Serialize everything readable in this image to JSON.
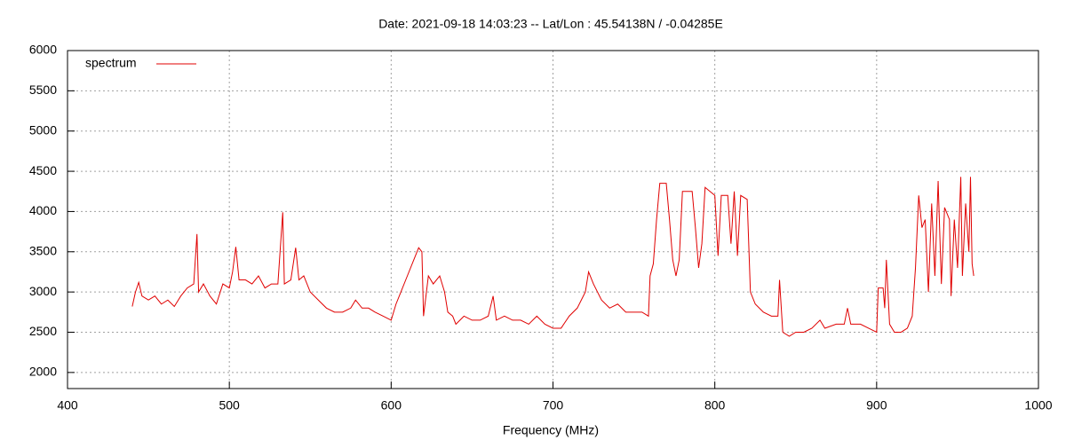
{
  "chart_data": {
    "type": "line",
    "title": "Date: 2021-09-18 14:03:23  --  Lat/Lon : 45.54138N / -0.04285E",
    "x_label": "Frequency (MHz)",
    "x": [
      440,
      442,
      444,
      446,
      450,
      454,
      458,
      462,
      466,
      470,
      474,
      478,
      480,
      481,
      484,
      488,
      492,
      496,
      500,
      502,
      504,
      506,
      510,
      514,
      518,
      522,
      526,
      530,
      533,
      534,
      538,
      541,
      543,
      546,
      550,
      555,
      560,
      565,
      570,
      575,
      578,
      582,
      586,
      590,
      595,
      600,
      603,
      606,
      610,
      614,
      617,
      619,
      620,
      623,
      626,
      630,
      633,
      635,
      638,
      640,
      645,
      650,
      655,
      660,
      663,
      665,
      670,
      675,
      680,
      685,
      690,
      695,
      700,
      705,
      710,
      715,
      720,
      722,
      725,
      730,
      735,
      740,
      745,
      750,
      755,
      759,
      760,
      762,
      764,
      766,
      770,
      772,
      774,
      776,
      778,
      780,
      786,
      788,
      790,
      792,
      794,
      800,
      802,
      804,
      808,
      810,
      812,
      814,
      816,
      820,
      822,
      825,
      830,
      835,
      839,
      840,
      842,
      846,
      850,
      855,
      860,
      865,
      868,
      875,
      880,
      882,
      884,
      890,
      895,
      900,
      901,
      904,
      905,
      906,
      908,
      911,
      915,
      919,
      922,
      924,
      926,
      928,
      930,
      932,
      934,
      936,
      938,
      940,
      942,
      945,
      946,
      948,
      950,
      952,
      953,
      955,
      957,
      958,
      959,
      960
    ],
    "series": [
      {
        "name": "spectrum",
        "color": "#e00000",
        "values": [
          2820,
          3000,
          3120,
          2950,
          2900,
          2950,
          2850,
          2900,
          2820,
          2950,
          3050,
          3100,
          3720,
          3000,
          3100,
          2950,
          2850,
          3100,
          3050,
          3250,
          3560,
          3150,
          3150,
          3100,
          3200,
          3050,
          3100,
          3100,
          3990,
          3100,
          3150,
          3550,
          3150,
          3200,
          3000,
          2900,
          2800,
          2750,
          2750,
          2800,
          2900,
          2800,
          2800,
          2750,
          2700,
          2650,
          2850,
          3000,
          3200,
          3400,
          3550,
          3500,
          2700,
          3200,
          3100,
          3200,
          3000,
          2750,
          2700,
          2600,
          2700,
          2650,
          2650,
          2700,
          2950,
          2650,
          2700,
          2650,
          2650,
          2600,
          2700,
          2600,
          2550,
          2550,
          2700,
          2800,
          3000,
          3250,
          3100,
          2900,
          2800,
          2850,
          2750,
          2750,
          2750,
          2700,
          3200,
          3350,
          3900,
          4350,
          4350,
          3900,
          3400,
          3200,
          3400,
          4250,
          4250,
          3800,
          3300,
          3600,
          4300,
          4200,
          3450,
          4200,
          4200,
          3600,
          4250,
          3450,
          4200,
          4150,
          3000,
          2850,
          2750,
          2700,
          2700,
          3150,
          2500,
          2450,
          2500,
          2500,
          2550,
          2650,
          2550,
          2600,
          2600,
          2800,
          2600,
          2600,
          2550,
          2500,
          3050,
          3050,
          2800,
          3400,
          2600,
          2500,
          2500,
          2550,
          2700,
          3300,
          4200,
          3800,
          3900,
          3000,
          4100,
          3200,
          4380,
          3100,
          4050,
          3900,
          2950,
          3900,
          3300,
          4430,
          3200,
          4100,
          3500,
          4430,
          3350,
          3200
        ]
      }
    ],
    "xlim": [
      400,
      1000
    ],
    "xticks": [
      400,
      500,
      600,
      700,
      800,
      900,
      1000
    ],
    "ylim": [
      1800,
      6000
    ],
    "yticks": [
      2000,
      2500,
      3000,
      3500,
      4000,
      4500,
      5000,
      5500,
      6000
    ],
    "grid": true,
    "legend_position": "top-left"
  }
}
